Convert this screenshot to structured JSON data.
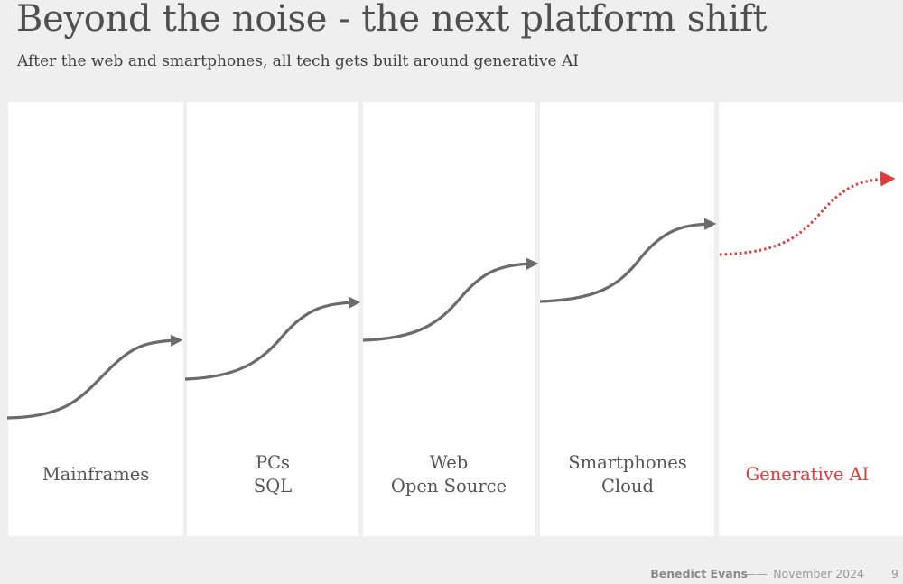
{
  "title": "Beyond the noise - the next platform shift",
  "subtitle": "After the web and smartphones, all tech gets built around generative AI",
  "eras": [
    {
      "lines": [
        "Mainframes"
      ]
    },
    {
      "lines": [
        "PCs",
        "SQL"
      ]
    },
    {
      "lines": [
        "Web",
        "Open Source"
      ]
    },
    {
      "lines": [
        "Smartphones",
        "Cloud"
      ]
    },
    {
      "lines": [
        "Generative AI"
      ],
      "highlight": true
    }
  ],
  "footer": {
    "author": "Benedict Evans",
    "separator": "——",
    "date": "November 2024",
    "page": "9"
  },
  "colors": {
    "background": "#efefef",
    "panel": "#ffffff",
    "curve": "#6b6b6b",
    "highlight": "#e13c3c"
  }
}
